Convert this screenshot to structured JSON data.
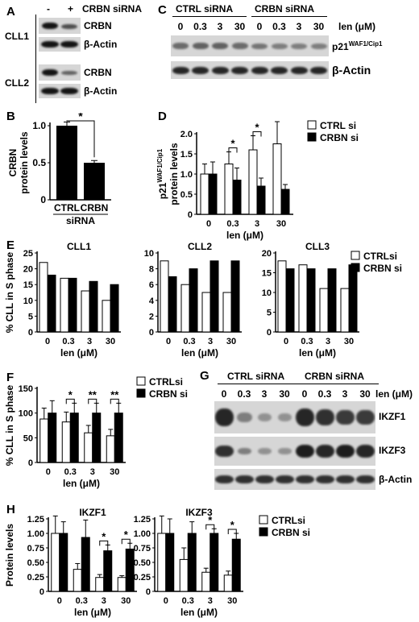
{
  "panels": {
    "A": {
      "letter": "A",
      "header_minus": "-",
      "header_plus": "+",
      "header_label": "CRBN siRNA",
      "rows": [
        {
          "group": "CLL1",
          "label1": "CRBN",
          "label2": "β-Actin"
        },
        {
          "group": "CLL2",
          "label1": "CRBN",
          "label2": "β-Actin"
        }
      ]
    },
    "C": {
      "letter": "C",
      "ctrl_label": "CTRL siRNA",
      "crbn_label": "CRBN siRNA",
      "len_label": "len (μM)",
      "doses": [
        "0",
        "0.3",
        "3",
        "30",
        "0",
        "0.3",
        "3",
        "30"
      ],
      "band1_label": "p21",
      "band1_sup": "WAF1/Cip1",
      "band2_label": "β-Actin"
    },
    "G": {
      "letter": "G",
      "ctrl_label": "CTRL siRNA",
      "crbn_label": "CRBN siRNA",
      "len_label": "len (μM)",
      "doses": [
        "0",
        "0.3",
        "3",
        "30",
        "0",
        "0.3",
        "3",
        "30"
      ],
      "bands": [
        "IKZF1",
        "IKZF3",
        "β-Actin"
      ]
    },
    "B": {
      "letter": "B"
    },
    "D": {
      "letter": "D"
    },
    "E": {
      "letter": "E"
    },
    "F": {
      "letter": "F"
    },
    "H": {
      "letter": "H"
    }
  },
  "chart_data": [
    {
      "id": "B",
      "type": "bar",
      "ylabel_line1": "CRBN",
      "ylabel_line2": "protein levels",
      "categories": [
        "CTRL",
        "CRBN"
      ],
      "xlabel": "siRNA",
      "values": [
        1.0,
        0.5
      ],
      "errors": [
        0.05,
        0.03
      ],
      "ylim": [
        0,
        1.0
      ],
      "yticks": [
        "0",
        "0.5",
        "1.0"
      ],
      "annotation": "*",
      "color": "#000000"
    },
    {
      "id": "D",
      "type": "bar",
      "ylabel_line1": "p21",
      "ylabel_sup": "WAF1/Cip1",
      "ylabel_line2": "protein levels",
      "xlabel": "len (μM)",
      "categories": [
        "0",
        "0.3",
        "3",
        "30"
      ],
      "ylim": [
        0,
        2.0
      ],
      "yticks": [
        "0",
        "0.5",
        "1.0",
        "1.5",
        "2.0"
      ],
      "series": [
        {
          "name": "CTRL si",
          "values": [
            1.0,
            1.25,
            1.6,
            1.75
          ],
          "errors": [
            0.25,
            0.3,
            0.35,
            0.55
          ],
          "color": "#ffffff"
        },
        {
          "name": "CRBN si",
          "values": [
            1.0,
            0.85,
            0.7,
            0.62
          ],
          "errors": [
            0.3,
            0.3,
            0.2,
            0.12
          ],
          "color": "#000000"
        }
      ],
      "annotations": [
        {
          "category": "0.3",
          "text": "*"
        },
        {
          "category": "3",
          "text": "*"
        }
      ]
    },
    {
      "id": "E",
      "type": "bar",
      "ylabel": "% CLL in S phase",
      "xlabel": "len (μM)",
      "categories": [
        "0",
        "0.3",
        "3",
        "30"
      ],
      "legend": [
        {
          "name": "CTRLsi",
          "color": "#ffffff"
        },
        {
          "name": "CRBN si",
          "color": "#000000"
        }
      ],
      "subplots": [
        {
          "title": "CLL1",
          "ylim": [
            0,
            25
          ],
          "yticks": [
            "0",
            "5",
            "10",
            "15",
            "20",
            "25"
          ],
          "series": [
            {
              "name": "CTRLsi",
              "values": [
                22,
                17,
                13,
                10
              ]
            },
            {
              "name": "CRBN si",
              "values": [
                18,
                17,
                16,
                15
              ]
            }
          ]
        },
        {
          "title": "CLL2",
          "ylim": [
            0,
            10
          ],
          "yticks": [
            "0",
            "2",
            "4",
            "6",
            "8",
            "10"
          ],
          "series": [
            {
              "name": "CTRLsi",
              "values": [
                9,
                6,
                5,
                5
              ]
            },
            {
              "name": "CRBN si",
              "values": [
                7,
                8,
                9,
                9
              ]
            }
          ]
        },
        {
          "title": "CLL3",
          "ylim": [
            0,
            20
          ],
          "yticks": [
            "0",
            "5",
            "10",
            "15",
            "20"
          ],
          "series": [
            {
              "name": "CTRLsi",
              "values": [
                18,
                17,
                11,
                11
              ]
            },
            {
              "name": "CRBN si",
              "values": [
                16,
                16,
                16,
                17
              ]
            }
          ]
        }
      ]
    },
    {
      "id": "F",
      "type": "bar",
      "ylabel": "% CLL in S phase",
      "xlabel": "len (μM)",
      "categories": [
        "0",
        "0.3",
        "3",
        "30"
      ],
      "ylim": [
        0,
        150
      ],
      "yticks": [
        "0",
        "50",
        "100",
        "150"
      ],
      "series": [
        {
          "name": "CTRLsi",
          "values": [
            88,
            82,
            60,
            54
          ],
          "errors": [
            22,
            20,
            15,
            13
          ],
          "color": "#ffffff"
        },
        {
          "name": "CRBN si",
          "values": [
            100,
            100,
            100,
            100
          ],
          "errors": [
            25,
            20,
            20,
            20
          ],
          "color": "#000000"
        }
      ],
      "annotations": [
        {
          "category": "0.3",
          "text": "*"
        },
        {
          "category": "3",
          "text": "**"
        },
        {
          "category": "30",
          "text": "**"
        }
      ]
    },
    {
      "id": "H",
      "type": "bar",
      "ylabel": "Protein levels",
      "xlabel": "len (μM)",
      "categories": [
        "0",
        "0.3",
        "3",
        "30"
      ],
      "legend": [
        {
          "name": "CTRLsi",
          "color": "#ffffff"
        },
        {
          "name": "CRBN si",
          "color": "#000000"
        }
      ],
      "subplots": [
        {
          "title": "IKZF1",
          "ylim": [
            0,
            1.25
          ],
          "yticks": [
            "0",
            "0.25",
            "0.50",
            "0.75",
            "1.00",
            "1.25"
          ],
          "series": [
            {
              "name": "CTRLsi",
              "values": [
                1.0,
                0.38,
                0.24,
                0.24
              ],
              "errors": [
                0.3,
                0.1,
                0.05,
                0.03
              ]
            },
            {
              "name": "CRBN si",
              "values": [
                1.0,
                0.93,
                0.7,
                0.73
              ],
              "errors": [
                0.2,
                0.3,
                0.1,
                0.1
              ]
            }
          ],
          "annotations": [
            {
              "category": "3",
              "text": "*"
            },
            {
              "category": "30",
              "text": "*"
            }
          ]
        },
        {
          "title": "IKZF3",
          "ylim": [
            0,
            1.25
          ],
          "yticks": [
            "0",
            "0.25",
            "0.50",
            "0.75",
            "1.00",
            "1.25"
          ],
          "series": [
            {
              "name": "CTRLsi",
              "values": [
                1.0,
                0.55,
                0.33,
                0.28
              ],
              "errors": [
                0.3,
                0.2,
                0.07,
                0.07
              ]
            },
            {
              "name": "CRBN si",
              "values": [
                1.0,
                1.0,
                1.0,
                0.9
              ],
              "errors": [
                0.25,
                0.2,
                0.08,
                0.1
              ]
            }
          ],
          "annotations": [
            {
              "category": "3",
              "text": "*"
            },
            {
              "category": "30",
              "text": "*"
            }
          ]
        }
      ]
    }
  ]
}
